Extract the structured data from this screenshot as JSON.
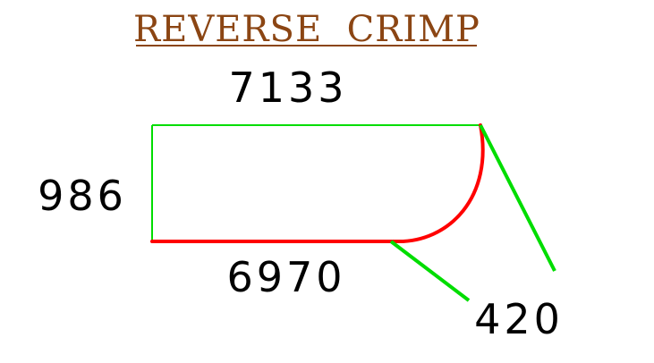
{
  "title": {
    "text": "REVERSE  CRIMP",
    "color": "#8b4513"
  },
  "dimensions": {
    "top_length": "7133",
    "side_height": "986",
    "bottom_length": "6970",
    "bend_radius": "420"
  },
  "colors": {
    "outline": "#00dd00",
    "crimp_edge": "#ff0000",
    "text": "#000000"
  }
}
